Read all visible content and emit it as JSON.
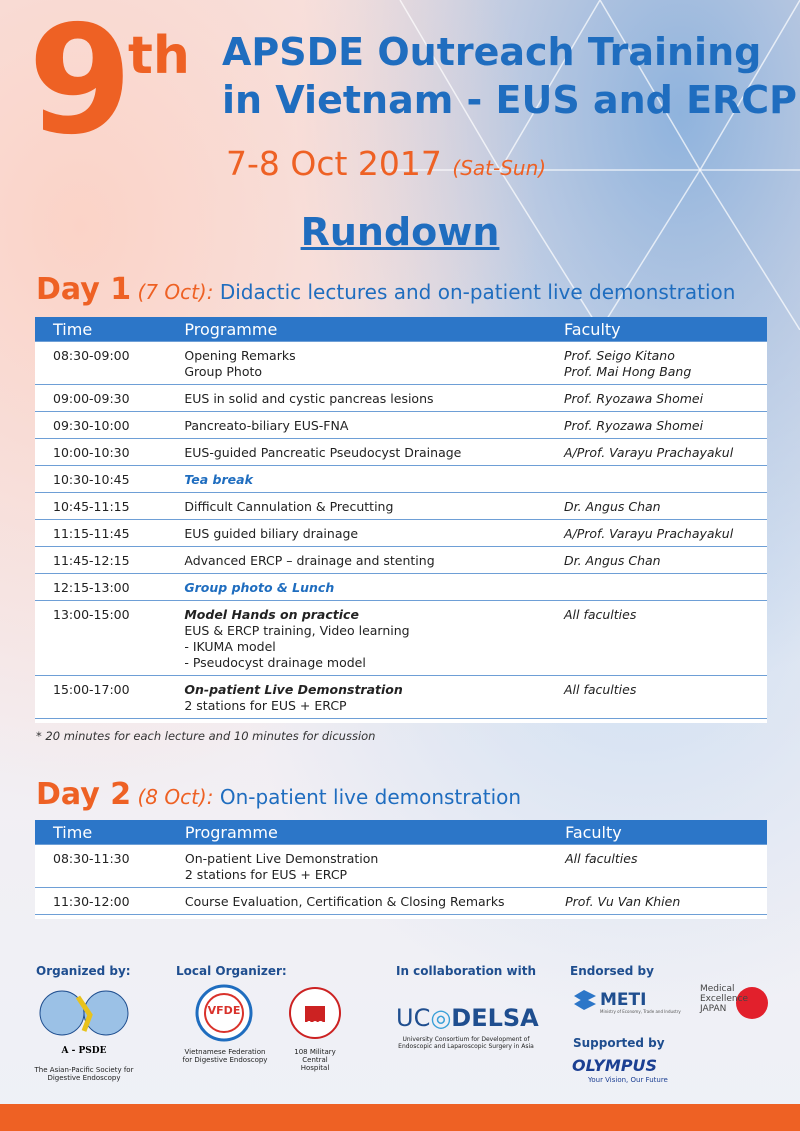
{
  "header": {
    "number": "9",
    "suffix": "th",
    "title_lines": [
      "APSDE Outreach Training",
      "in Vietnam - EUS and ERCP"
    ],
    "date": "7-8 Oct 2017",
    "date_note": "(Sat-Sun)"
  },
  "rundown": "Rundown",
  "days": [
    {
      "label": "Day 1",
      "date": "(7 Oct):",
      "description": "Didactic lectures and on-patient live demonstration",
      "columns": [
        "Time",
        "Programme",
        "Faculty"
      ],
      "rows": [
        {
          "time": "08:30-09:00",
          "programme": [
            "Opening Remarks",
            "Group Photo"
          ],
          "faculty": [
            "Prof. Seigo Kitano",
            "Prof. Mai Hong Bang"
          ]
        },
        {
          "time": "09:00-09:30",
          "programme": [
            "EUS in solid and cystic pancreas lesions"
          ],
          "faculty": [
            "Prof. Ryozawa Shomei"
          ]
        },
        {
          "time": "09:30-10:00",
          "programme": [
            "Pancreato-biliary EUS-FNA"
          ],
          "faculty": [
            "Prof. Ryozawa Shomei"
          ]
        },
        {
          "time": "10:00-10:30",
          "programme": [
            "EUS-guided Pancreatic Pseudocyst Drainage"
          ],
          "faculty": [
            "A/Prof. Varayu Prachayakul"
          ]
        },
        {
          "time": "10:30-10:45",
          "programme": [
            "Tea break"
          ],
          "faculty": []
        },
        {
          "time": "10:45-11:15",
          "programme": [
            "Difficult Cannulation & Precutting"
          ],
          "faculty": [
            "Dr. Angus Chan"
          ]
        },
        {
          "time": "11:15-11:45",
          "programme": [
            "EUS guided biliary drainage"
          ],
          "faculty": [
            "A/Prof. Varayu Prachayakul"
          ]
        },
        {
          "time": "11:45-12:15",
          "programme": [
            "Advanced ERCP – drainage and stenting"
          ],
          "faculty": [
            "Dr. Angus Chan"
          ]
        },
        {
          "time": "12:15-13:00",
          "programme": [
            "Group photo & Lunch"
          ],
          "faculty": []
        },
        {
          "time": "13:00-15:00",
          "programme": [
            "Model Hands on practice",
            "EUS & ERCP training, Video learning",
            "- IKUMA model",
            "- Pseudocyst drainage model"
          ],
          "faculty": [
            "All faculties"
          ]
        },
        {
          "time": "15:00-17:00",
          "programme": [
            "On-patient Live Demonstration",
            "2 stations for EUS + ERCP"
          ],
          "faculty": [
            "All faculties"
          ]
        }
      ],
      "note": "* 20 minutes for each lecture and 10 minutes for dicussion"
    },
    {
      "label": "Day 2",
      "date": "(8 Oct):",
      "description": "On-patient live demonstration",
      "columns": [
        "Time",
        "Programme",
        "Faculty"
      ],
      "rows": [
        {
          "time": "08:30-11:30",
          "programme": [
            "On-patient Live Demonstration",
            "2 stations for EUS + ERCP"
          ],
          "faculty": [
            "All faculties"
          ]
        },
        {
          "time": "11:30-12:00",
          "programme": [
            "Course Evaluation, Certification & Closing Remarks"
          ],
          "faculty": [
            "Prof. Vu Van Khien"
          ]
        }
      ]
    }
  ],
  "footer": {
    "organized_by": "Organized by:",
    "apsde": "A - PSDE",
    "apsde_name": "The Asian-Pacific Society for Digestive Endoscopy",
    "local_organizer": "Local Organizer:",
    "vfde": "VFDE",
    "vfde_name": "Vietnamese Federation for Digestive Endoscopy",
    "hospital_number": "108",
    "hospital_name": "108 Military Central Hospital",
    "collaboration": "In collaboration with",
    "uc": "UC",
    "delsa": "DELSA",
    "delsa_name": "University Consortium for Development of Endoscopic and Laparoscopic Surgery in Asia",
    "endorsed_by": "Endorsed by",
    "meti": "METI",
    "meti_name": "Ministry of Economy, Trade and Industry",
    "mej": "Medical Excellence JAPAN",
    "supported_by": "Supported by",
    "olympus": "OLYMPUS",
    "olympus_slogan": "Your Vision, Our Future"
  }
}
